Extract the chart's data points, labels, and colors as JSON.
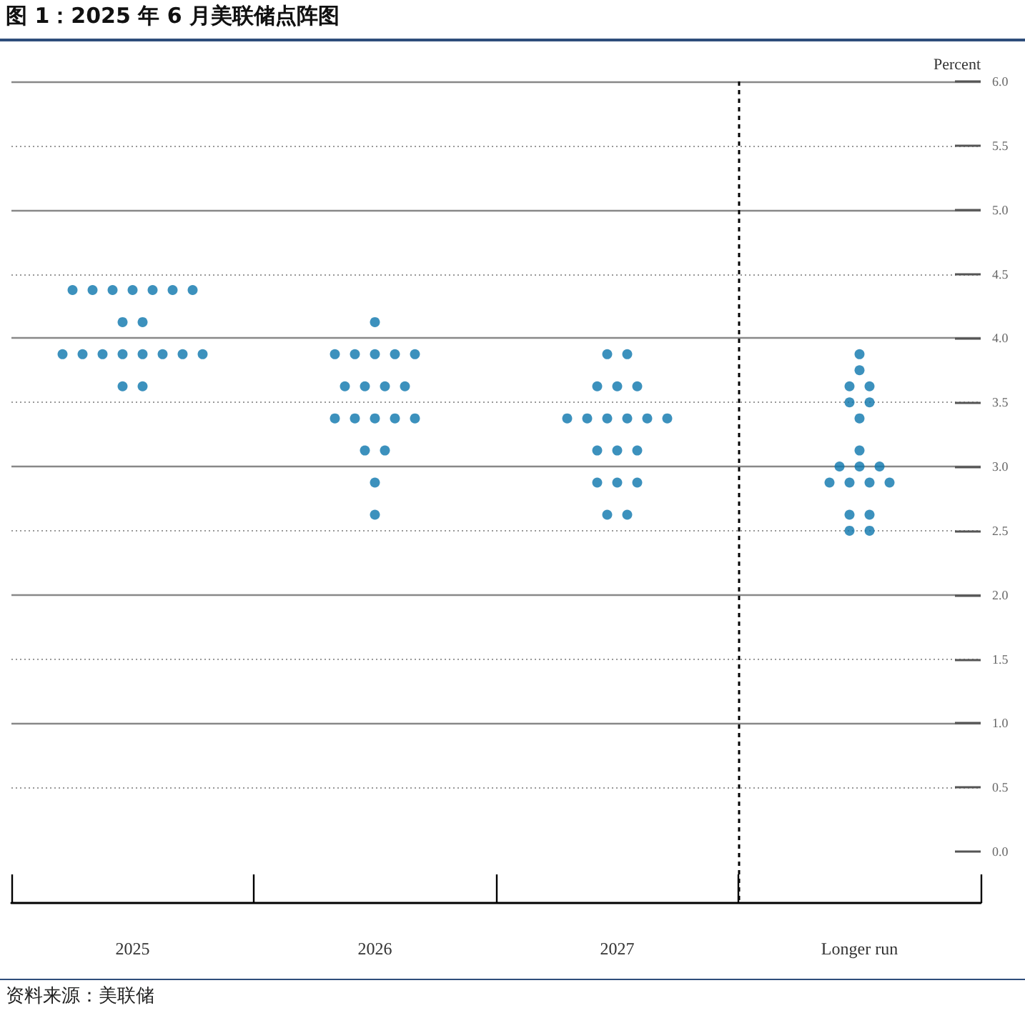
{
  "chart_data": {
    "type": "scatter",
    "title": "图 1：2025 年 6 月美联储点阵图",
    "ylabel": "Percent",
    "annotations": [
      "资料来源：美联储"
    ],
    "categories": [
      "2025",
      "2026",
      "2027",
      "Longer run"
    ],
    "series": [
      {
        "color": "#0b76ad",
        "values": [
          4.375,
          4.125,
          3.875,
          3.875
        ]
      },
      {
        "color": "#0b76ad",
        "values": [
          4.375,
          3.875,
          3.875,
          3.75
        ]
      },
      {
        "color": "#0b76ad",
        "values": [
          4.375,
          3.875,
          3.625,
          3.625
        ]
      },
      {
        "color": "#0b76ad",
        "values": [
          4.375,
          3.875,
          3.625,
          3.625
        ]
      },
      {
        "color": "#0b76ad",
        "values": [
          4.375,
          3.875,
          3.625,
          3.5
        ]
      },
      {
        "color": "#0b76ad",
        "values": [
          4.375,
          3.875,
          3.375,
          3.5
        ]
      },
      {
        "color": "#0b76ad",
        "values": [
          4.375,
          3.625,
          3.375,
          3.375
        ]
      },
      {
        "color": "#0b76ad",
        "values": [
          4.125,
          3.625,
          3.375,
          3.125
        ]
      },
      {
        "color": "#0b76ad",
        "values": [
          4.125,
          3.625,
          3.375,
          3.0
        ]
      },
      {
        "color": "#0b76ad",
        "values": [
          3.875,
          3.625,
          3.375,
          3.0
        ]
      },
      {
        "color": "#0b76ad",
        "values": [
          3.875,
          3.375,
          3.375,
          3.0
        ]
      },
      {
        "color": "#0b76ad",
        "values": [
          3.875,
          3.375,
          3.125,
          2.875
        ]
      },
      {
        "color": "#0b76ad",
        "values": [
          3.875,
          3.375,
          3.125,
          2.875
        ]
      },
      {
        "color": "#0b76ad",
        "values": [
          3.875,
          3.375,
          3.125,
          2.875
        ]
      },
      {
        "color": "#0b76ad",
        "values": [
          3.875,
          3.375,
          2.875,
          2.875
        ]
      },
      {
        "color": "#0b76ad",
        "values": [
          3.875,
          3.125,
          2.875,
          2.625
        ]
      },
      {
        "color": "#0b76ad",
        "values": [
          3.875,
          3.125,
          2.875,
          2.625
        ]
      },
      {
        "color": "#0b76ad",
        "values": [
          3.625,
          2.875,
          2.625,
          2.5
        ]
      },
      {
        "color": "#0b76ad",
        "values": [
          3.625,
          2.625,
          2.625,
          2.5
        ]
      }
    ],
    "ylim": [
      -0.4,
      6.0
    ],
    "yticks": [
      {
        "value": 0,
        "label": "0.0"
      },
      {
        "value": 0.5,
        "label": "0.5"
      },
      {
        "value": 1,
        "label": "1.0"
      },
      {
        "value": 1.5,
        "label": "1.5"
      },
      {
        "value": 2,
        "label": "2.0"
      },
      {
        "value": 2.5,
        "label": "2.5"
      },
      {
        "value": 3,
        "label": "3.0"
      },
      {
        "value": 3.5,
        "label": "3.5"
      },
      {
        "value": 4,
        "label": "4.0"
      },
      {
        "value": 4.5,
        "label": "4.5"
      },
      {
        "value": 5,
        "label": "5.0"
      },
      {
        "value": 5.5,
        "label": "5.5"
      },
      {
        "value": 6,
        "label": "6.0"
      }
    ],
    "ref_lines": [
      {
        "axis": "x",
        "value": "Longer run",
        "color": "#000000",
        "line_style": "dashed"
      }
    ],
    "grid": "y",
    "marker": "circle"
  }
}
